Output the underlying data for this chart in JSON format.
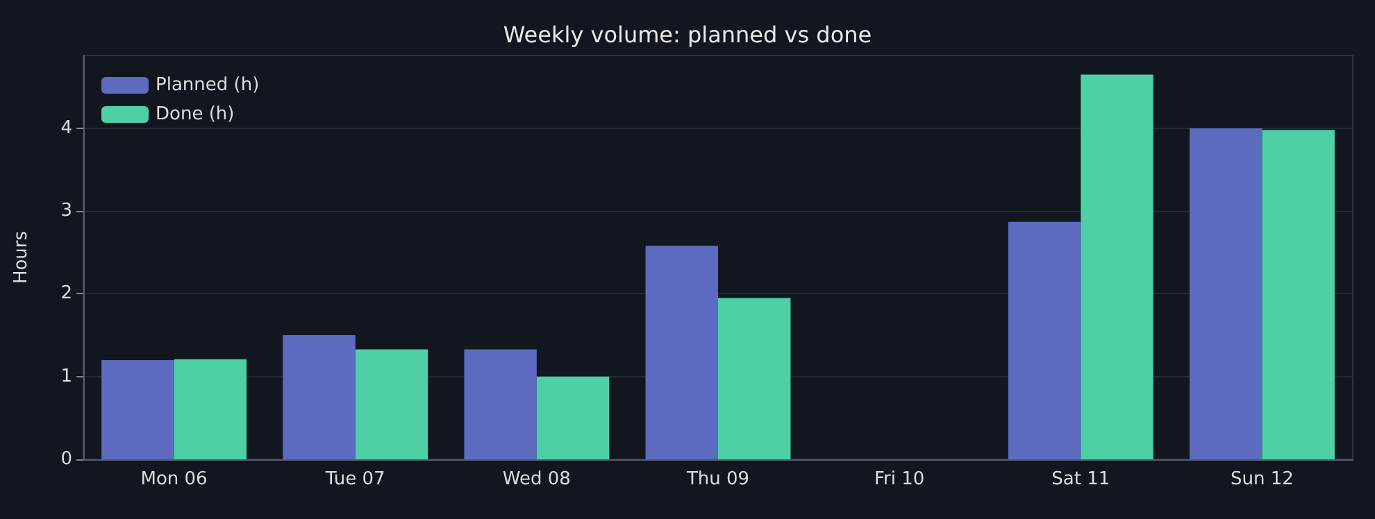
{
  "chart_data": {
    "type": "bar",
    "title": "Weekly volume: planned vs done",
    "ylabel": "Hours",
    "categories": [
      "Mon 06",
      "Tue 07",
      "Wed 08",
      "Thu 09",
      "Fri 10",
      "Sat 11",
      "Sun 12"
    ],
    "series": [
      {
        "name": "Planned (h)",
        "color": "#5c6bc0",
        "values": [
          1.2,
          1.5,
          1.33,
          2.58,
          0,
          2.87,
          4.0
        ]
      },
      {
        "name": "Done (h)",
        "color": "#4dd0a6",
        "values": [
          1.21,
          1.33,
          1.0,
          1.95,
          0,
          4.65,
          3.98
        ]
      }
    ],
    "ylim": [
      0,
      4.88
    ],
    "yticks": [
      0,
      1,
      2,
      3,
      4
    ],
    "grid": "y",
    "legend": "top left"
  }
}
